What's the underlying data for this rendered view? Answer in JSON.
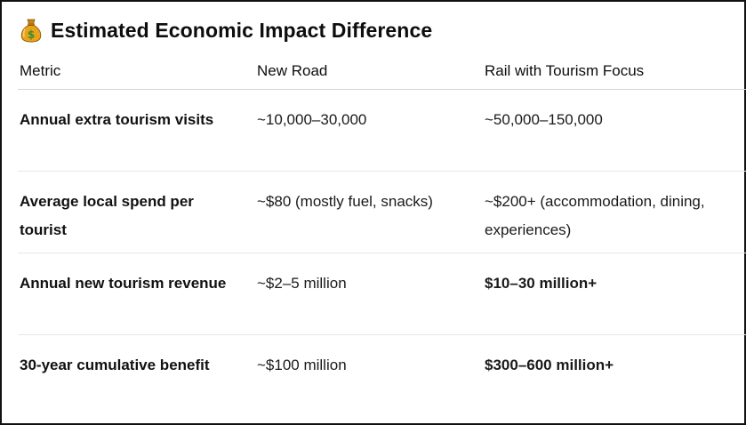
{
  "heading": {
    "icon": "money-bag-icon",
    "title": "Estimated Economic Impact Difference"
  },
  "table": {
    "columns": [
      "Metric",
      "New Road",
      "Rail with Tourism Focus"
    ],
    "rows": [
      {
        "metric": "Annual extra tourism visits",
        "new_road": "~10,000–30,000",
        "rail": "~50,000–150,000"
      },
      {
        "metric": "Average local spend per tourist",
        "new_road": "~$80 (mostly fuel, snacks)",
        "rail": "~$200+ (accommodation, dining, experiences)"
      },
      {
        "metric": "Annual new tourism revenue",
        "new_road": "~$2–5 million",
        "rail": "$10–30 million+"
      },
      {
        "metric": "30-year cumulative benefit",
        "new_road": "~$100 million",
        "rail": "$300–600 million+"
      }
    ]
  },
  "colors": {
    "border": "#111111",
    "divider": "#e6e6e6",
    "bag_fill": "#e8a21b",
    "bag_symbol": "#3f8a2a"
  }
}
